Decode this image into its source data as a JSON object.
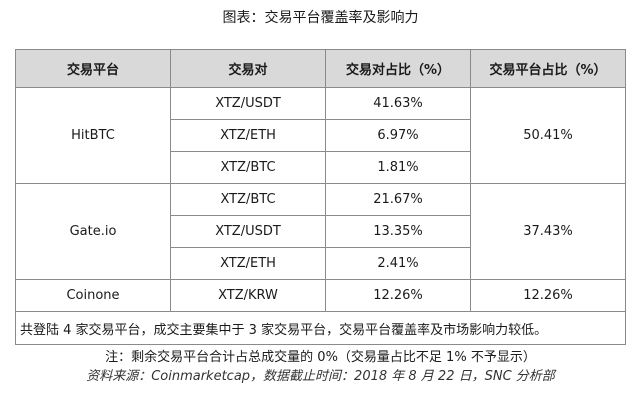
{
  "title": "图表：交易平台覆盖率及影响力",
  "table": {
    "headers": [
      "交易平台",
      "交易对",
      "交易对占比（%）",
      "交易平台占比（%）"
    ],
    "groups": [
      {
        "platform": "HitBTC",
        "platform_share": "50.41%",
        "pairs": [
          {
            "pair": "XTZ/USDT",
            "share": "41.63%"
          },
          {
            "pair": "XTZ/ETH",
            "share": "6.97%"
          },
          {
            "pair": "XTZ/BTC",
            "share": "1.81%"
          }
        ]
      },
      {
        "platform": "Gate.io",
        "platform_share": "37.43%",
        "pairs": [
          {
            "pair": "XTZ/BTC",
            "share": "21.67%"
          },
          {
            "pair": "XTZ/USDT",
            "share": "13.35%"
          },
          {
            "pair": "XTZ/ETH",
            "share": "2.41%"
          }
        ]
      },
      {
        "platform": "Coinone",
        "platform_share": "12.26%",
        "pairs": [
          {
            "pair": "XTZ/KRW",
            "share": "12.26%"
          }
        ]
      }
    ],
    "summary": "共登陆 4 家交易平台，成交主要集中于 3 家交易平台，交易平台覆盖率及市场影响力较低。"
  },
  "note": "注：剩余交易平台合计占总成交量的 0%（交易量占比不足 1% 不予显示）",
  "source": "资料来源：Coinmarketcap，数据截止时间：2018 年 8 月 22 日，SNC 分析部"
}
